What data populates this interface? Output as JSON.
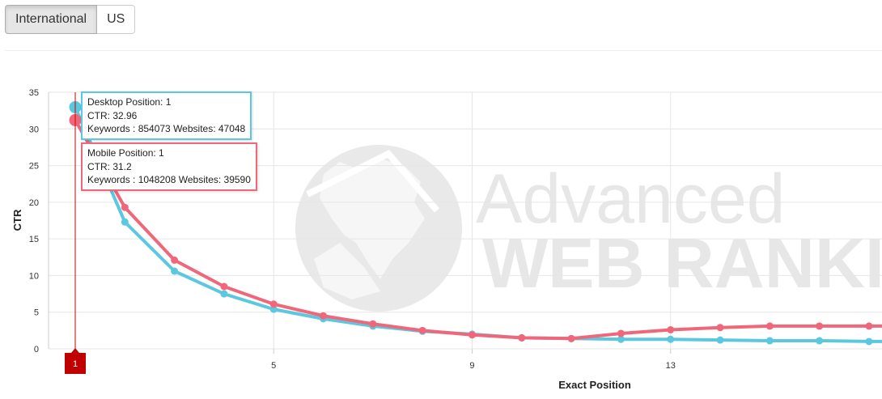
{
  "toggle": {
    "international_label": "International",
    "us_label": "US",
    "active": "International"
  },
  "watermark": {
    "line1": "Advanced",
    "line2": "WEB RANKING"
  },
  "tooltips": {
    "desktop": {
      "line1": "Desktop Position: 1",
      "line2": "CTR: 32.96",
      "line3": "Keywords : 854073 Websites: 47048"
    },
    "mobile": {
      "line1": "Mobile Position: 1",
      "line2": "CTR: 31.2",
      "line3": "Keywords : 1048208 Websites: 39590"
    }
  },
  "crosshair_label": "1",
  "colors": {
    "desktop": "#5bc8e0",
    "mobile": "#f0677a",
    "crosshair": "#cc0000",
    "grid": "#e6e6e6"
  },
  "chart_data": {
    "type": "line",
    "xlabel": "Exact Position",
    "ylabel": "CTR",
    "xlim": [
      1,
      17.8
    ],
    "ylim": [
      0,
      35
    ],
    "xticks": [
      5,
      9,
      13
    ],
    "yticks": [
      0,
      5,
      10,
      15,
      20,
      25,
      30,
      35
    ],
    "x": [
      1,
      2,
      3,
      4,
      5,
      6,
      7,
      8,
      9,
      10,
      11,
      12,
      13,
      14,
      15,
      16,
      17,
      18
    ],
    "series": [
      {
        "name": "Desktop",
        "values": [
          32.96,
          17.3,
          10.6,
          7.5,
          5.4,
          4.1,
          3.1,
          2.4,
          2.0,
          1.5,
          1.4,
          1.3,
          1.3,
          1.2,
          1.1,
          1.1,
          1.0,
          1.0
        ]
      },
      {
        "name": "Mobile",
        "values": [
          31.2,
          19.3,
          12.1,
          8.5,
          6.1,
          4.5,
          3.4,
          2.5,
          1.9,
          1.5,
          1.4,
          2.1,
          2.6,
          2.9,
          3.1,
          3.1,
          3.1,
          3.1
        ]
      }
    ]
  }
}
